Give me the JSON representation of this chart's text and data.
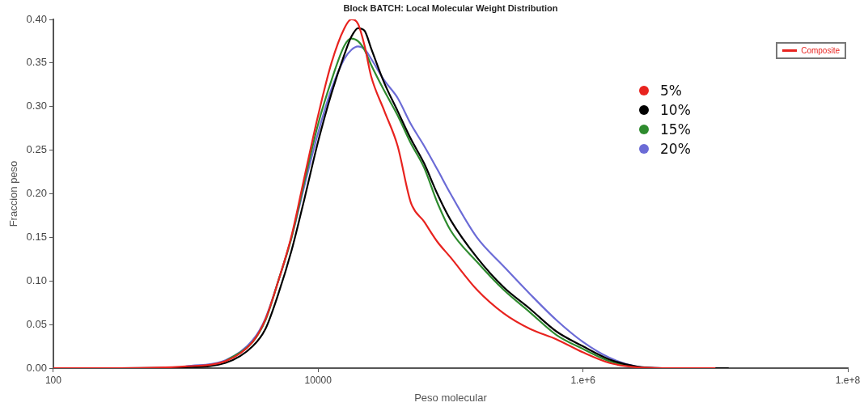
{
  "chart_data": {
    "type": "line",
    "title": "Block BATCH: Local Molecular Weight Distribution",
    "xlabel": "Peso molecular",
    "ylabel": "Fraccion peso",
    "annotations": [
      "Composite"
    ],
    "log": "x",
    "xlim": [
      100,
      100000000
    ],
    "xticks": [
      100,
      10000,
      {
        "value": 1000000,
        "label": "1.e+6"
      },
      {
        "value": 100000000,
        "label": "1.e+8"
      }
    ],
    "ylim": [
      0,
      0.4
    ],
    "yticks": [
      {
        "value": 0,
        "label": "0.00"
      },
      {
        "value": 0.05,
        "label": "0.05"
      },
      {
        "value": 0.1,
        "label": "0.10"
      },
      {
        "value": 0.15,
        "label": "0.15"
      },
      {
        "value": 0.2,
        "label": "0.20"
      },
      {
        "value": 0.25,
        "label": "0.25"
      },
      {
        "value": 0.3,
        "label": "0.30"
      },
      {
        "value": 0.35,
        "label": "0.35"
      },
      {
        "value": 0.4,
        "label": "0.40"
      }
    ],
    "grid": false,
    "legend": "top right",
    "marker": "none",
    "line_style": "solid",
    "x": [
      100,
      320,
      1000,
      2000,
      3200,
      4000,
      5000,
      6300,
      7900,
      10000,
      12600,
      15800,
      17800,
      20000,
      22400,
      25100,
      31600,
      39800,
      50100,
      63100,
      79400,
      100000,
      158000,
      251000,
      398000,
      631000,
      1000000,
      1580000,
      2510000,
      3980000,
      10000000
    ],
    "series": [
      {
        "name": "5%",
        "color": "#e8231f",
        "values": [
          0,
          0,
          0.002,
          0.008,
          0.03,
          0.056,
          0.1,
          0.152,
          0.22,
          0.29,
          0.35,
          0.39,
          0.4,
          0.395,
          0.37,
          0.335,
          0.295,
          0.255,
          0.19,
          0.168,
          0.145,
          0.127,
          0.09,
          0.063,
          0.045,
          0.033,
          0.018,
          0.006,
          0.001,
          0,
          0
        ]
      },
      {
        "name": "10%",
        "color": "#000000",
        "x": [
          100,
          320,
          1000,
          2000,
          3200,
          4000,
          5000,
          6300,
          7900,
          10000,
          12600,
          15800,
          17800,
          20000,
          22400,
          25100,
          31600,
          39800,
          50100,
          63100,
          79400,
          100000,
          158000,
          251000,
          398000,
          631000,
          1000000,
          1580000,
          2510000,
          3980000,
          10000000,
          12600000
        ],
        "values": [
          0,
          0,
          0.001,
          0.006,
          0.025,
          0.045,
          0.085,
          0.135,
          0.195,
          0.26,
          0.315,
          0.36,
          0.38,
          0.39,
          0.387,
          0.367,
          0.327,
          0.295,
          0.263,
          0.235,
          0.2,
          0.17,
          0.127,
          0.093,
          0.068,
          0.042,
          0.025,
          0.01,
          0.002,
          0,
          0,
          0
        ]
      },
      {
        "name": "15%",
        "color": "#2e8b2e",
        "values": [
          null,
          null,
          null,
          0.008,
          0.03,
          0.055,
          0.1,
          0.15,
          0.215,
          0.28,
          0.33,
          0.37,
          0.378,
          0.375,
          0.365,
          0.348,
          0.318,
          0.29,
          0.258,
          0.23,
          0.19,
          0.158,
          0.122,
          0.09,
          0.064,
          0.038,
          0.022,
          0.008,
          0.001,
          null,
          null
        ]
      },
      {
        "name": "20%",
        "color": "#6b6bd6",
        "values": [
          null,
          null,
          0.002,
          0.009,
          0.032,
          0.057,
          0.1,
          0.15,
          0.21,
          0.27,
          0.32,
          0.355,
          0.365,
          0.369,
          0.366,
          0.355,
          0.33,
          0.31,
          0.28,
          0.255,
          0.228,
          0.2,
          0.15,
          0.117,
          0.085,
          0.055,
          0.03,
          0.012,
          0.002,
          0,
          0
        ]
      }
    ]
  }
}
